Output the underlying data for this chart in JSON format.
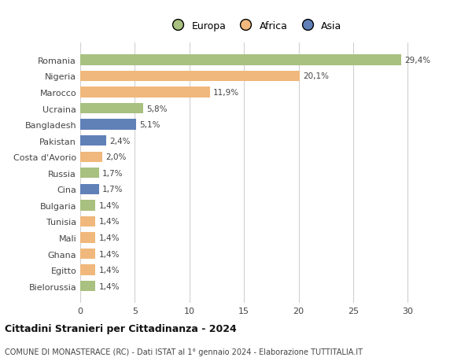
{
  "categories": [
    "Romania",
    "Nigeria",
    "Marocco",
    "Ucraina",
    "Bangladesh",
    "Pakistan",
    "Costa d'Avorio",
    "Russia",
    "Cina",
    "Bulgaria",
    "Tunisia",
    "Mali",
    "Ghana",
    "Egitto",
    "Bielorussia"
  ],
  "values": [
    29.4,
    20.1,
    11.9,
    5.8,
    5.1,
    2.4,
    2.0,
    1.7,
    1.7,
    1.4,
    1.4,
    1.4,
    1.4,
    1.4,
    1.4
  ],
  "labels": [
    "29,4%",
    "20,1%",
    "11,9%",
    "5,8%",
    "5,1%",
    "2,4%",
    "2,0%",
    "1,7%",
    "1,7%",
    "1,4%",
    "1,4%",
    "1,4%",
    "1,4%",
    "1,4%",
    "1,4%"
  ],
  "continents": [
    "Europa",
    "Africa",
    "Africa",
    "Europa",
    "Asia",
    "Asia",
    "Africa",
    "Europa",
    "Asia",
    "Europa",
    "Africa",
    "Africa",
    "Africa",
    "Africa",
    "Europa"
  ],
  "colors": {
    "Europa": "#a8c080",
    "Africa": "#f0b87c",
    "Asia": "#6080b8"
  },
  "xlim": [
    0,
    32
  ],
  "xticks": [
    0,
    5,
    10,
    15,
    20,
    25,
    30
  ],
  "title": "Cittadini Stranieri per Cittadinanza - 2024",
  "subtitle": "COMUNE DI MONASTERACE (RC) - Dati ISTAT al 1° gennaio 2024 - Elaborazione TUTTITALIA.IT",
  "bg_color": "#ffffff",
  "grid_color": "#d0d0d0",
  "bar_height": 0.65
}
